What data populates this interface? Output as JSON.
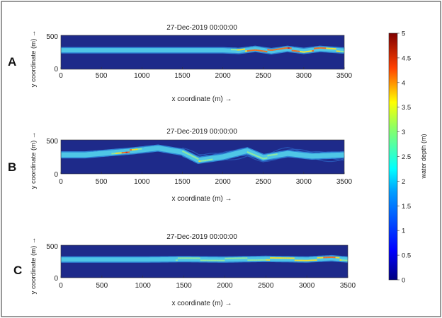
{
  "chart_data": [
    {
      "panel": "A",
      "type": "heatmap",
      "title": "27-Dec-2019 00:00:00",
      "xlabel": "x coordinate (m) →",
      "ylabel": "y coordinate (m) →",
      "xlim": [
        0,
        3500
      ],
      "ylim": [
        0,
        500
      ],
      "xticks": [
        "0",
        "500",
        "1000",
        "1500",
        "2000",
        "2500",
        "3000",
        "3500"
      ],
      "yticks": [
        "0",
        "500"
      ],
      "channel_centerline_y": [
        [
          0,
          280
        ],
        [
          300,
          280
        ],
        [
          1000,
          280
        ],
        [
          1500,
          280
        ],
        [
          2000,
          280
        ],
        [
          2200,
          270
        ],
        [
          2400,
          300
        ],
        [
          2600,
          265
        ],
        [
          2800,
          300
        ],
        [
          3000,
          270
        ],
        [
          3200,
          300
        ],
        [
          3500,
          275
        ]
      ],
      "depth_m": [
        [
          0,
          2.0
        ],
        [
          300,
          2.2
        ],
        [
          1000,
          2.0
        ],
        [
          2000,
          2.0
        ],
        [
          2200,
          3.5
        ],
        [
          2400,
          4.2
        ],
        [
          2600,
          3.8
        ],
        [
          2800,
          4.3
        ],
        [
          3000,
          3.6
        ],
        [
          3200,
          4.0
        ],
        [
          3500,
          3.0
        ]
      ]
    },
    {
      "panel": "B",
      "type": "heatmap",
      "title": "27-Dec-2019 00:00:00",
      "xlabel": "x coordinate (m) →",
      "ylabel": "y coordinate (m) →",
      "xlim": [
        0,
        3500
      ],
      "ylim": [
        0,
        500
      ],
      "xticks": [
        "0",
        "500",
        "1000",
        "1500",
        "2000",
        "2500",
        "3000",
        "3500"
      ],
      "yticks": [
        "0",
        "500"
      ],
      "channel_centerline_y": [
        [
          0,
          280
        ],
        [
          300,
          280
        ],
        [
          600,
          310
        ],
        [
          900,
          340
        ],
        [
          1200,
          380
        ],
        [
          1500,
          320
        ],
        [
          1700,
          200
        ],
        [
          2000,
          250
        ],
        [
          2300,
          340
        ],
        [
          2500,
          240
        ],
        [
          2800,
          300
        ],
        [
          3100,
          260
        ],
        [
          3500,
          280
        ]
      ],
      "depth_m": [
        [
          0,
          2.0
        ],
        [
          600,
          2.5
        ],
        [
          800,
          4.5
        ],
        [
          1000,
          2.5
        ],
        [
          1300,
          2.0
        ],
        [
          1700,
          3.2
        ],
        [
          2000,
          2.0
        ],
        [
          2500,
          3.0
        ],
        [
          3000,
          1.8
        ],
        [
          3500,
          1.5
        ]
      ]
    },
    {
      "panel": "C",
      "type": "heatmap",
      "title": "27-Dec-2019 00:00:00",
      "xlabel": "x coordinate (m) →",
      "ylabel": "y coordinate (m) →",
      "xlim": [
        0,
        3500
      ],
      "ylim": [
        0,
        500
      ],
      "xticks": [
        "0",
        "500",
        "1000",
        "1500",
        "2000",
        "2500",
        "3000",
        "3500"
      ],
      "yticks": [
        "0",
        "500"
      ],
      "channel_centerline_y": [
        [
          0,
          280
        ],
        [
          300,
          280
        ],
        [
          1000,
          280
        ],
        [
          1500,
          285
        ],
        [
          2000,
          280
        ],
        [
          2500,
          290
        ],
        [
          3000,
          280
        ],
        [
          3300,
          300
        ],
        [
          3500,
          280
        ]
      ],
      "depth_m": [
        [
          0,
          2.0
        ],
        [
          1000,
          2.0
        ],
        [
          1500,
          2.8
        ],
        [
          2000,
          3.0
        ],
        [
          2500,
          3.2
        ],
        [
          3000,
          3.5
        ],
        [
          3300,
          4.0
        ],
        [
          3500,
          2.5
        ]
      ]
    }
  ],
  "colorbar": {
    "label": "water depth (m)",
    "range": [
      0,
      5
    ],
    "ticks": [
      "0",
      "0.5",
      "1",
      "1.5",
      "2",
      "2.5",
      "3",
      "3.5",
      "4",
      "4.5",
      "5"
    ]
  },
  "panel_labels": [
    "A",
    "B",
    "C"
  ],
  "colors": {
    "background": "#1e2a8a",
    "channel_main": "#4fc6e6",
    "channel_edge": "#2f86d6",
    "deep": "#f0e030",
    "deepest": "#d82020",
    "plume": "#2a60c0"
  }
}
